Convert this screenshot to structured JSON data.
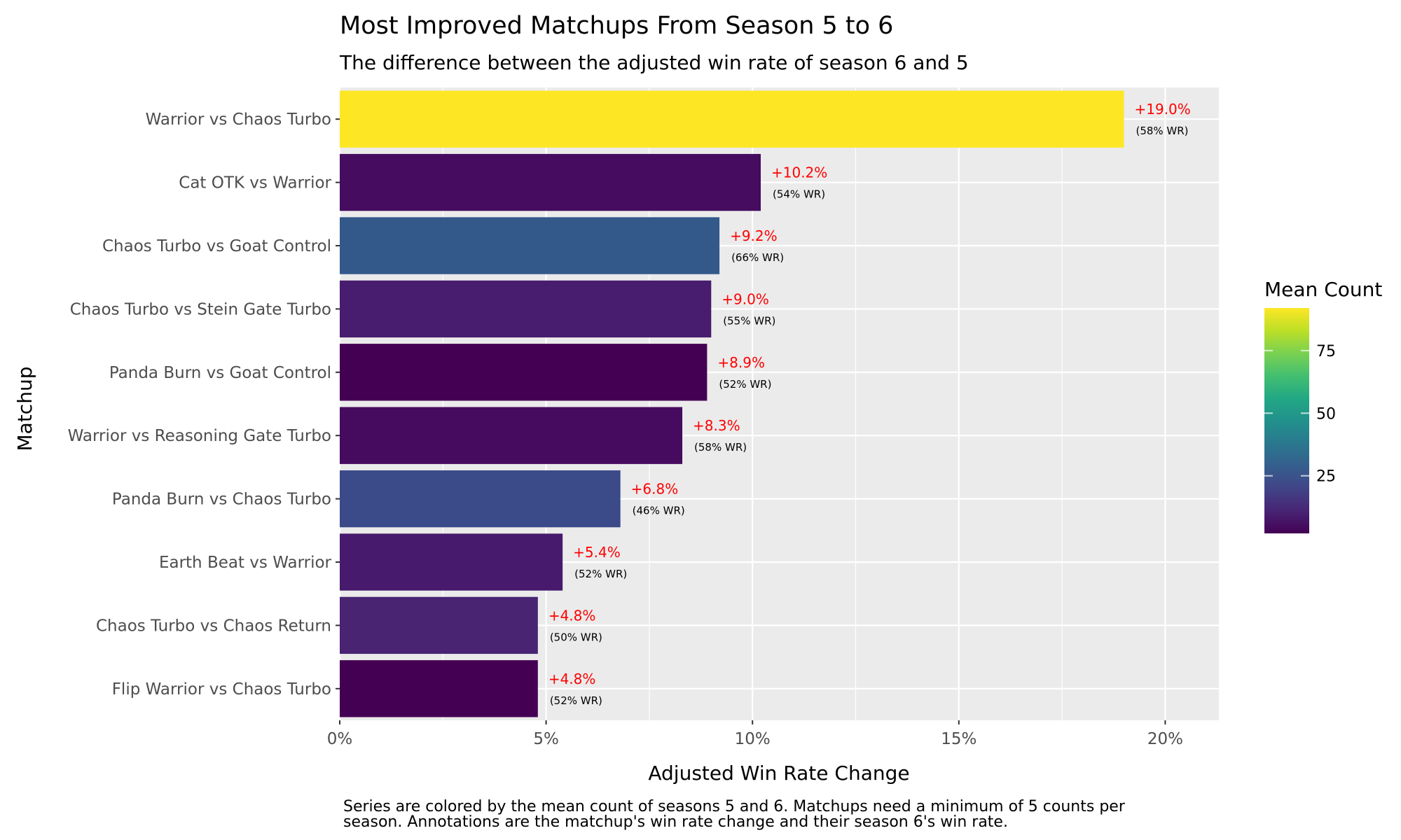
{
  "chart_data": {
    "type": "bar",
    "orientation": "horizontal",
    "title": "Most Improved Matchups From Season 5 to 6",
    "subtitle": "The difference between the adjusted win rate of season 6 and 5",
    "xlabel": "Adjusted Win Rate Change",
    "ylabel": "Matchup",
    "xlim": [
      0,
      21.3
    ],
    "x_ticks": [
      0,
      5,
      10,
      15,
      20
    ],
    "x_tick_labels": [
      "0%",
      "5%",
      "10%",
      "15%",
      "20%"
    ],
    "grid": true,
    "categories": [
      "Warrior vs Chaos Turbo",
      "Cat OTK vs Warrior",
      "Chaos Turbo vs Goat Control",
      "Chaos Turbo vs Stein Gate Turbo",
      "Panda Burn vs Goat Control",
      "Warrior vs Reasoning Gate Turbo",
      "Panda Burn vs Chaos Turbo",
      "Earth Beat vs Warrior",
      "Chaos Turbo vs Chaos Return",
      "Flip Warrior vs Chaos Turbo"
    ],
    "values": [
      19.0,
      10.2,
      9.2,
      9.0,
      8.9,
      8.3,
      6.8,
      5.4,
      4.8,
      4.8
    ],
    "change_labels": [
      "+19.0%",
      "+10.2%",
      "+9.2%",
      "+9.0%",
      "+8.9%",
      "+8.3%",
      "+6.8%",
      "+5.4%",
      "+4.8%",
      "+4.8%"
    ],
    "wr_labels": [
      "(58% WR)",
      "(54% WR)",
      "(66% WR)",
      "(55% WR)",
      "(52% WR)",
      "(58% WR)",
      "(46% WR)",
      "(52% WR)",
      "(50% WR)",
      "(52% WR)"
    ],
    "mean_count": [
      92,
      6,
      22,
      10,
      2,
      5,
      18,
      9,
      12,
      2
    ],
    "colors": [
      "#fde725",
      "#450c5f",
      "#33598b",
      "#481c6e",
      "#440154",
      "#460b5e",
      "#3b4a89",
      "#471a6d",
      "#482473",
      "#440154"
    ],
    "legend": {
      "title": "Mean Count",
      "position": "right",
      "range": [
        2,
        92
      ],
      "ticks": [
        25,
        50,
        75
      ],
      "tick_labels": [
        "25",
        "50",
        "75"
      ]
    },
    "caption_lines": [
      "Series are colored by the mean count of seasons 5 and 6. Matchups need a minimum of 5 counts per",
      "season. Annotations are the matchup's win rate change and their season 6's win rate."
    ]
  }
}
